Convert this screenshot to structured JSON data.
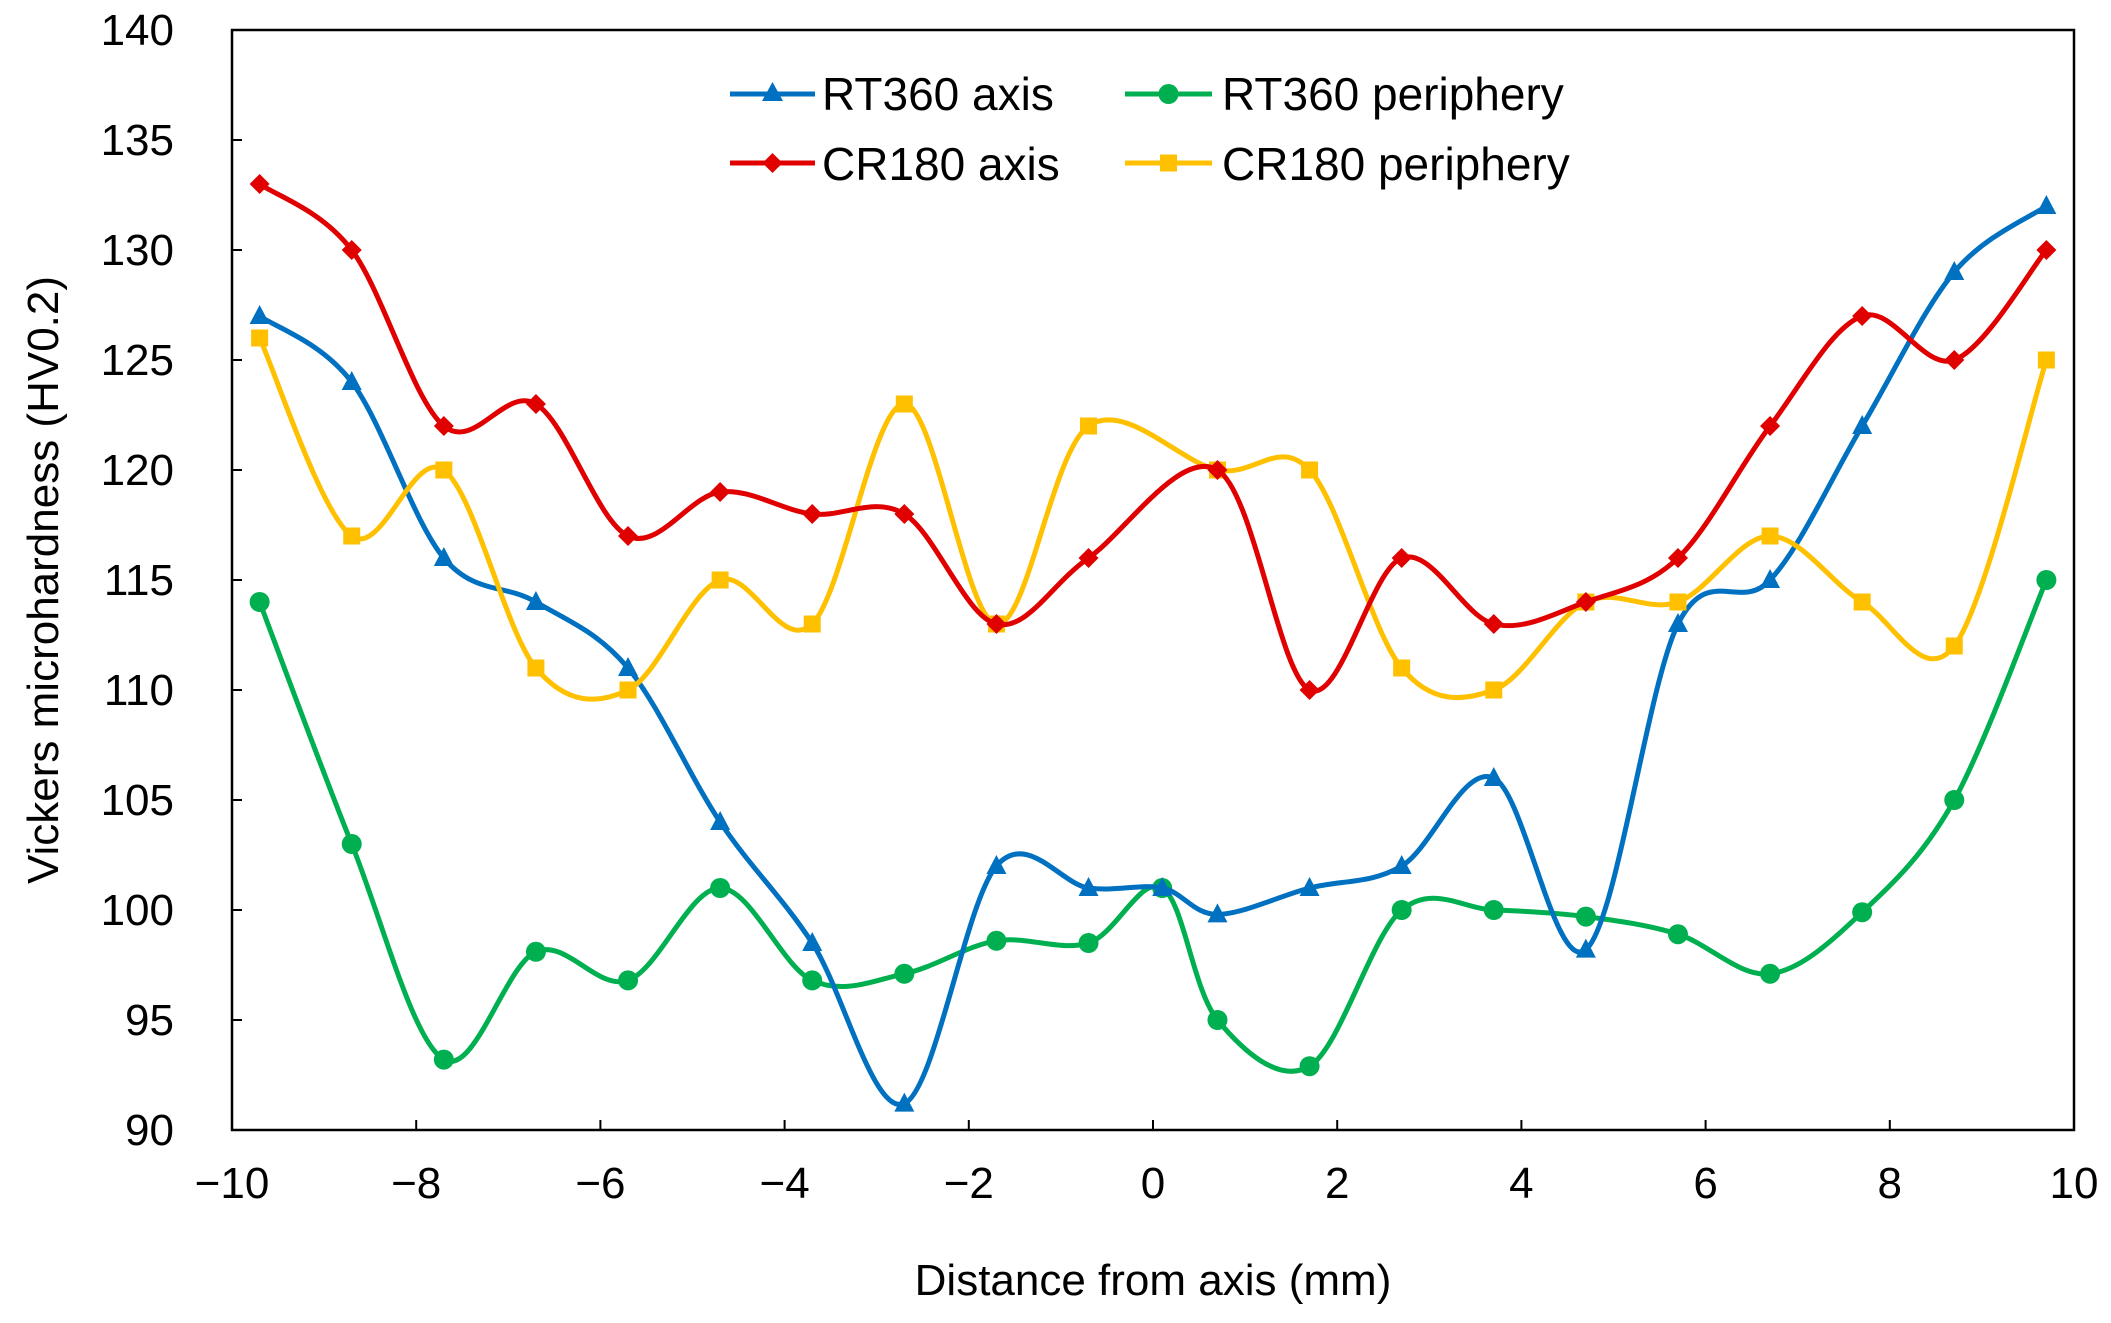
{
  "chart_data": {
    "type": "line",
    "title": "",
    "xlabel": "Distance from axis (mm)",
    "ylabel": "Vickers microhardness (HV0.2)",
    "xlim": [
      -10,
      10
    ],
    "ylim": [
      90,
      140
    ],
    "xticks": [
      -10,
      -8,
      -6,
      -4,
      -2,
      0,
      2,
      4,
      6,
      8,
      10
    ],
    "xtick_labels": [
      "−10",
      "−8",
      "−6",
      "−4",
      "−2",
      "0",
      "2",
      "4",
      "6",
      "8",
      "10"
    ],
    "yticks": [
      90,
      95,
      100,
      105,
      110,
      115,
      120,
      125,
      130,
      135,
      140
    ],
    "ytick_labels": [
      "90",
      "95",
      "100",
      "105",
      "110",
      "115",
      "120",
      "125",
      "130",
      "135",
      "140"
    ],
    "grid": false,
    "legend_position": "top-center",
    "series": [
      {
        "name": "RT360 axis",
        "color": "#0070C0",
        "marker": "triangle",
        "x": [
          -9.7,
          -8.7,
          -7.7,
          -6.7,
          -5.7,
          -4.7,
          -3.7,
          -2.7,
          -1.7,
          -0.7,
          0.1,
          0.7,
          1.7,
          2.7,
          3.7,
          4.7,
          5.7,
          6.7,
          7.7,
          8.7,
          9.7
        ],
        "values": [
          127,
          124,
          116,
          114,
          111,
          104,
          98.5,
          91.2,
          102,
          101,
          101,
          99.8,
          101,
          102,
          106,
          98.2,
          113,
          115,
          122,
          129,
          132
        ]
      },
      {
        "name": "RT360 periphery",
        "color": "#00B050",
        "marker": "circle",
        "x": [
          -9.7,
          -8.7,
          -7.7,
          -6.7,
          -5.7,
          -4.7,
          -3.7,
          -2.7,
          -1.7,
          -0.7,
          0.1,
          0.7,
          1.7,
          2.7,
          3.7,
          4.7,
          5.7,
          6.7,
          7.7,
          8.7,
          9.7
        ],
        "values": [
          114,
          103,
          93.2,
          98.1,
          96.8,
          101,
          96.8,
          97.1,
          98.6,
          98.5,
          101,
          95,
          92.9,
          100,
          100,
          99.7,
          98.9,
          97.1,
          99.9,
          105,
          115
        ]
      },
      {
        "name": "CR180 axis",
        "color": "#E00000",
        "marker": "diamond",
        "x": [
          -9.7,
          -8.7,
          -7.7,
          -6.7,
          -5.7,
          -4.7,
          -3.7,
          -2.7,
          -1.7,
          -0.7,
          0.7,
          1.7,
          2.7,
          3.7,
          4.7,
          5.7,
          6.7,
          7.7,
          8.7,
          9.7
        ],
        "values": [
          133,
          130,
          122,
          123,
          117,
          119,
          118,
          118,
          113,
          116,
          120,
          110,
          116,
          113,
          114,
          116,
          122,
          127,
          125,
          130
        ]
      },
      {
        "name": "CR180 periphery",
        "color": "#FFC000",
        "marker": "square",
        "x": [
          -9.7,
          -8.7,
          -7.7,
          -6.7,
          -5.7,
          -4.7,
          -3.7,
          -2.7,
          -1.7,
          -0.7,
          0.7,
          1.7,
          2.7,
          3.7,
          4.7,
          5.7,
          6.7,
          7.7,
          8.7,
          9.7
        ],
        "values": [
          126,
          117,
          120,
          111,
          110,
          115,
          113,
          123,
          113,
          122,
          120,
          120,
          111,
          110,
          114,
          114,
          117,
          114,
          112,
          125
        ]
      }
    ]
  }
}
